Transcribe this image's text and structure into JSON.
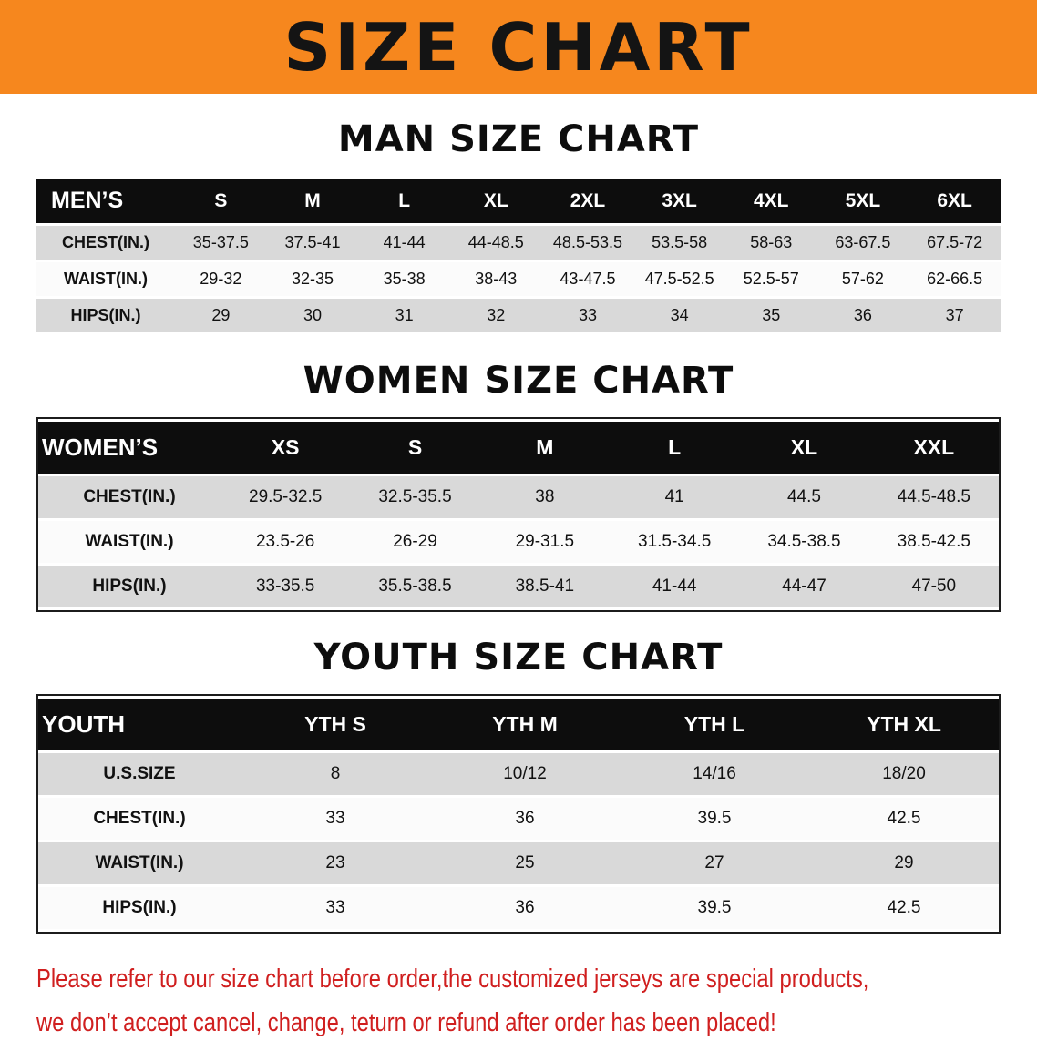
{
  "banner": {
    "title": "SIZE CHART",
    "bg_color": "#f6871e",
    "text_color": "#141414"
  },
  "sections": [
    {
      "id": "men",
      "heading": "MAN SIZE CHART",
      "header_label": "MEN’S",
      "columns": [
        "S",
        "M",
        "L",
        "XL",
        "2XL",
        "3XL",
        "4XL",
        "5XL",
        "6XL"
      ],
      "rows": [
        {
          "label": "CHEST(IN.)",
          "values": [
            "35-37.5",
            "37.5-41",
            "41-44",
            "44-48.5",
            "48.5-53.5",
            "53.5-58",
            "58-63",
            "63-67.5",
            "67.5-72"
          ]
        },
        {
          "label": "WAIST(IN.)",
          "values": [
            "29-32",
            "32-35",
            "35-38",
            "38-43",
            "43-47.5",
            "47.5-52.5",
            "52.5-57",
            "57-62",
            "62-66.5"
          ]
        },
        {
          "label": "HIPS(IN.)",
          "values": [
            "29",
            "30",
            "31",
            "32",
            "33",
            "34",
            "35",
            "36",
            "37"
          ]
        }
      ]
    },
    {
      "id": "women",
      "heading": "WOMEN SIZE CHART",
      "header_label": "WOMEN’S",
      "columns": [
        "XS",
        "S",
        "M",
        "L",
        "XL",
        "XXL"
      ],
      "rows": [
        {
          "label": "CHEST(IN.)",
          "values": [
            "29.5-32.5",
            "32.5-35.5",
            "38",
            "41",
            "44.5",
            "44.5-48.5"
          ]
        },
        {
          "label": "WAIST(IN.)",
          "values": [
            "23.5-26",
            "26-29",
            "29-31.5",
            "31.5-34.5",
            "34.5-38.5",
            "38.5-42.5"
          ]
        },
        {
          "label": "HIPS(IN.)",
          "values": [
            "33-35.5",
            "35.5-38.5",
            "38.5-41",
            "41-44",
            "44-47",
            "47-50"
          ]
        }
      ]
    },
    {
      "id": "youth",
      "heading": "YOUTH SIZE CHART",
      "header_label": "YOUTH",
      "columns": [
        "YTH S",
        "YTH M",
        "YTH L",
        "YTH XL"
      ],
      "rows": [
        {
          "label": "U.S.SIZE",
          "values": [
            "8",
            "10/12",
            "14/16",
            "18/20"
          ]
        },
        {
          "label": "CHEST(IN.)",
          "values": [
            "33",
            "36",
            "39.5",
            "42.5"
          ]
        },
        {
          "label": "WAIST(IN.)",
          "values": [
            "23",
            "25",
            "27",
            "29"
          ]
        },
        {
          "label": "HIPS(IN.)",
          "values": [
            "33",
            "36",
            "39.5",
            "42.5"
          ]
        }
      ]
    }
  ],
  "disclaimer": {
    "line1": "Please refer to our size chart before order,the customized jerseys are special products,",
    "line2": "we don’t accept cancel, change, teturn or refund after order has been placed!",
    "color": "#d01f1f"
  }
}
